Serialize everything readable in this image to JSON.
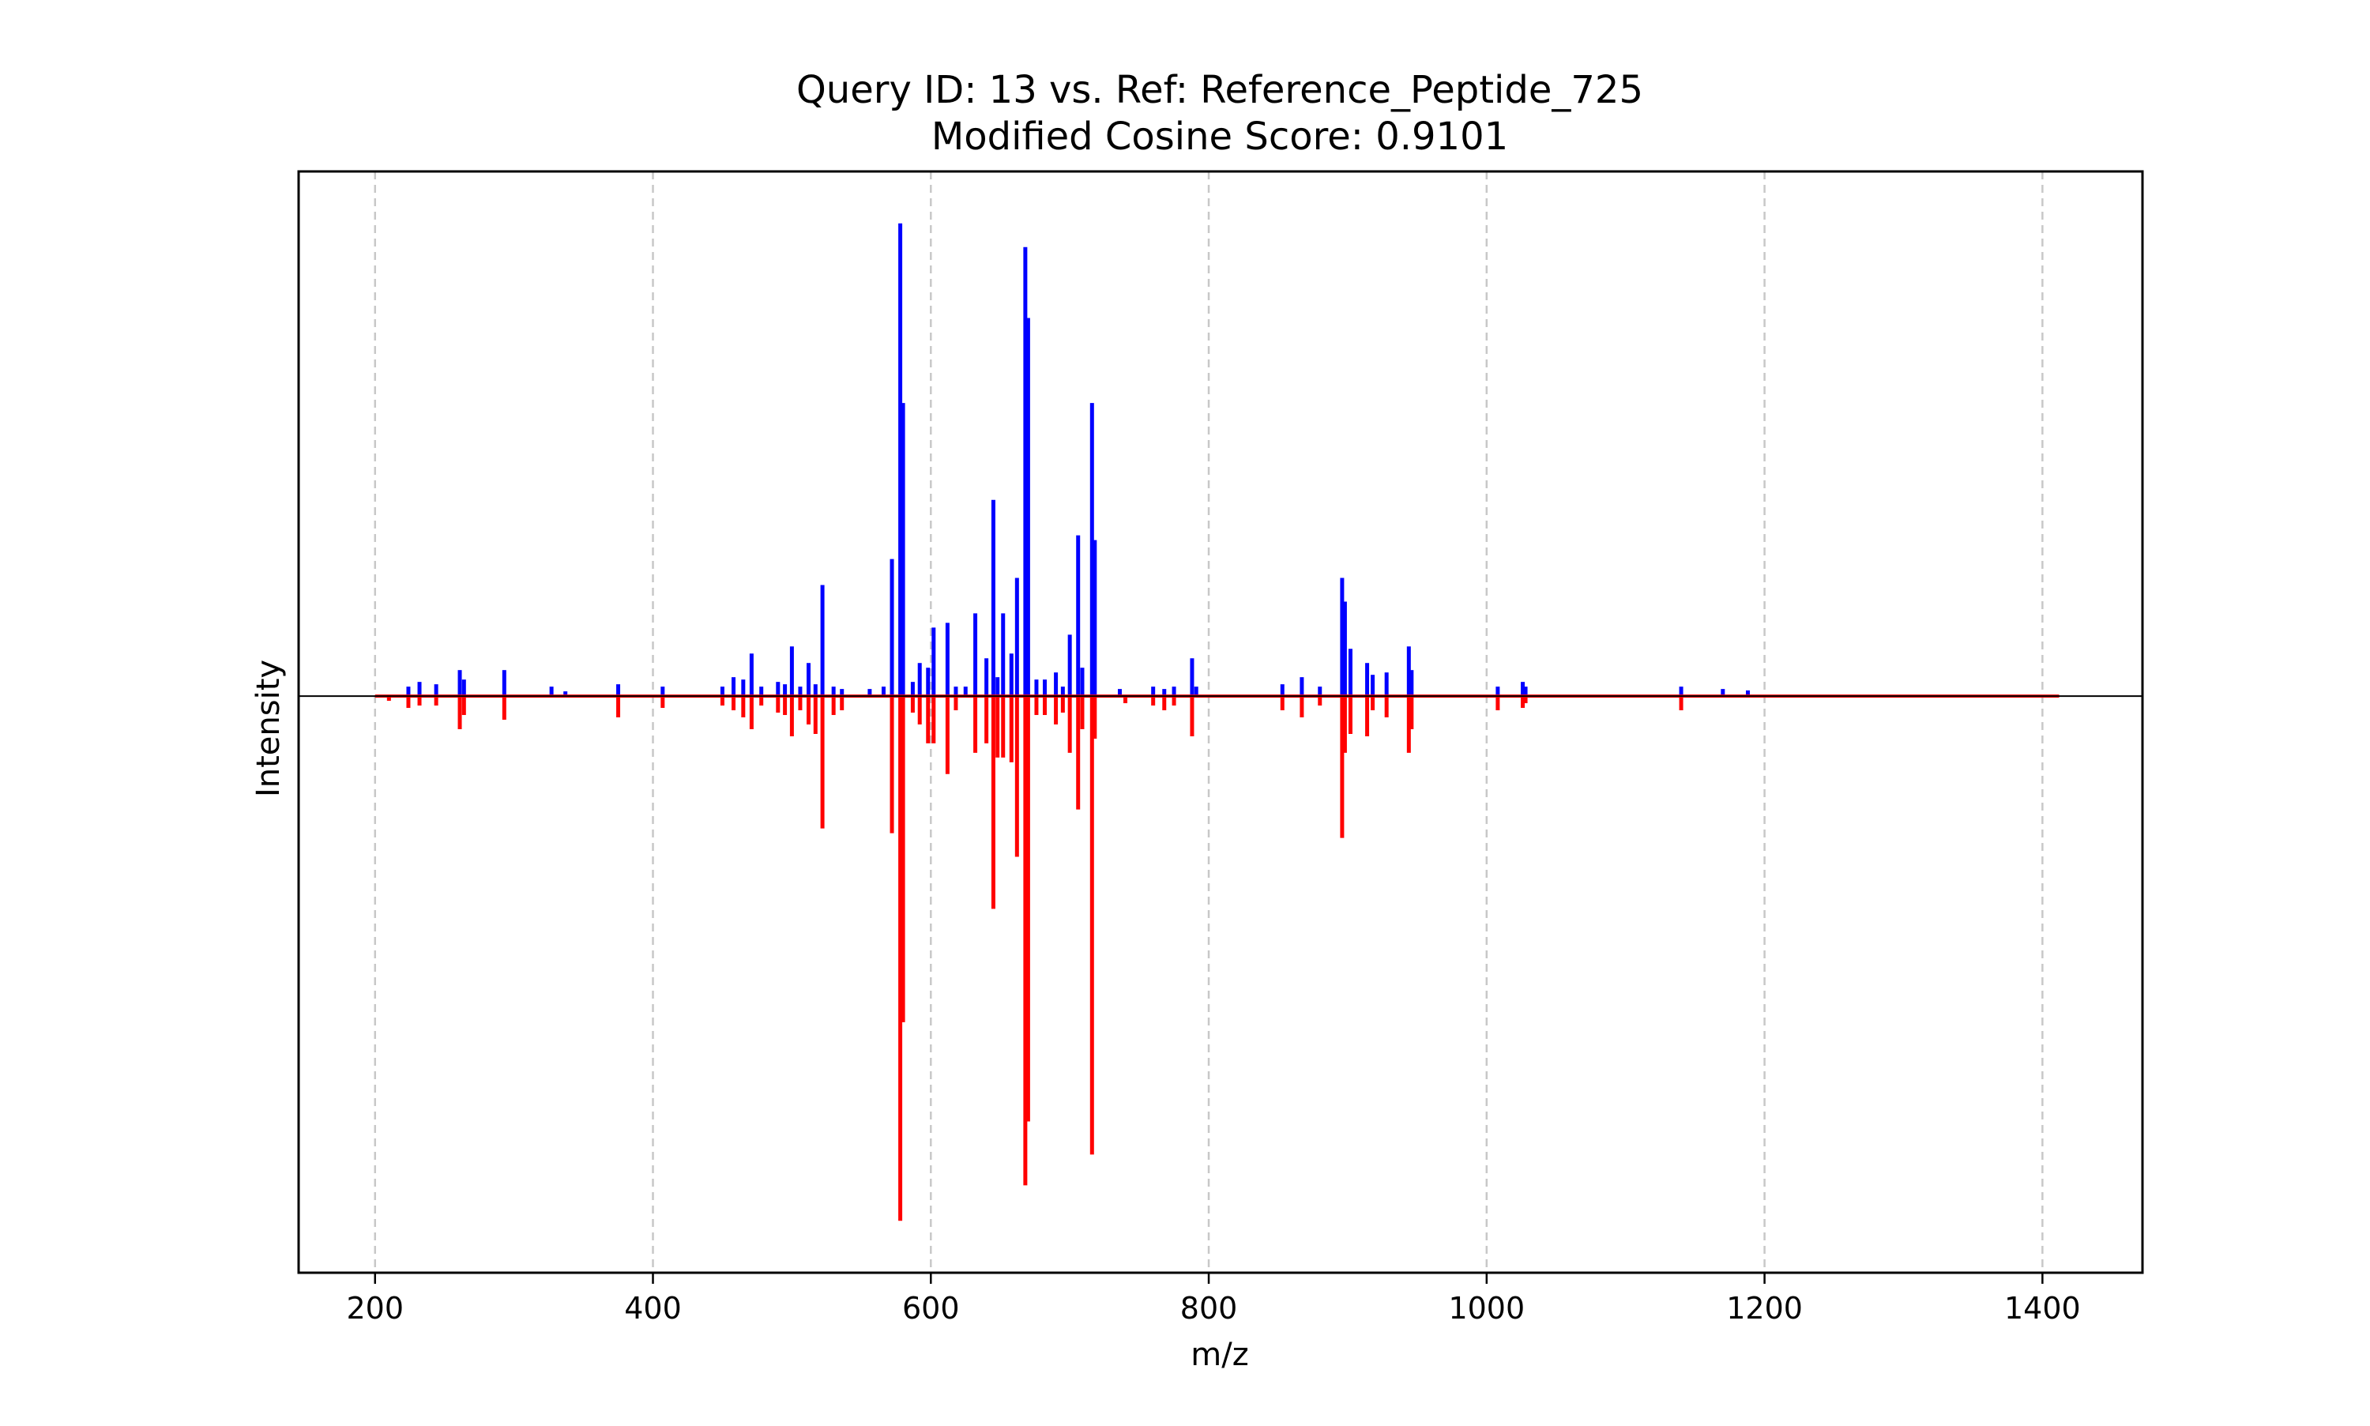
{
  "chart_data": {
    "type": "bar",
    "subtype": "mirror-spectrum",
    "title": "Query ID: 13 vs. Ref: Reference_Peptide_725",
    "subtitle": "Modified Cosine Score: 0.9101",
    "xlabel": "m/z",
    "ylabel": "Intensity",
    "xlim": [
      145,
      1472
    ],
    "ylim": [
      -1.22,
      1.11
    ],
    "xticks": [
      200,
      400,
      600,
      800,
      1000,
      1200,
      1400
    ],
    "grid": "vertical dashed",
    "colors": {
      "query": "#0000ff",
      "reference": "#ff0000",
      "baseline": "#000000",
      "grid": "#c8c8c8"
    },
    "series": [
      {
        "role": "query",
        "color": "#0000ff",
        "direction": "up",
        "x": [
          224,
          232,
          244,
          261,
          264,
          293,
          327,
          337,
          375,
          407,
          450,
          458,
          465,
          471,
          478,
          490,
          495,
          500,
          506,
          512,
          517,
          522,
          530,
          536,
          556,
          566,
          572,
          578,
          580,
          587,
          592,
          598,
          602,
          612,
          618,
          625,
          632,
          640,
          645,
          648,
          652,
          658,
          662,
          668,
          670,
          676,
          682,
          690,
          695,
          700,
          706,
          709,
          716,
          718,
          736,
          760,
          768,
          775,
          788,
          791,
          853,
          867,
          880,
          896,
          898,
          902,
          914,
          918,
          928,
          944,
          946,
          1008,
          1026,
          1028,
          1140,
          1170,
          1188
        ],
        "values": [
          0.02,
          0.03,
          0.025,
          0.055,
          0.035,
          0.055,
          0.02,
          0.01,
          0.025,
          0.02,
          0.02,
          0.04,
          0.035,
          0.09,
          0.02,
          0.03,
          0.025,
          0.105,
          0.02,
          0.07,
          0.025,
          0.235,
          0.02,
          0.015,
          0.015,
          0.02,
          0.29,
          1.0,
          0.62,
          0.03,
          0.07,
          0.06,
          0.145,
          0.155,
          0.02,
          0.02,
          0.175,
          0.08,
          0.415,
          0.04,
          0.175,
          0.09,
          0.25,
          0.95,
          0.8,
          0.035,
          0.035,
          0.05,
          0.02,
          0.13,
          0.34,
          0.06,
          0.62,
          0.33,
          0.015,
          0.02,
          0.015,
          0.02,
          0.08,
          0.02,
          0.025,
          0.04,
          0.02,
          0.25,
          0.2,
          0.1,
          0.07,
          0.045,
          0.05,
          0.105,
          0.055,
          0.02,
          0.03,
          0.02,
          0.02,
          0.015,
          0.012
        ]
      },
      {
        "role": "reference",
        "color": "#ff0000",
        "direction": "down",
        "x": [
          210,
          224,
          232,
          244,
          261,
          264,
          293,
          375,
          407,
          450,
          458,
          465,
          471,
          478,
          490,
          495,
          500,
          506,
          512,
          517,
          522,
          530,
          536,
          572,
          578,
          580,
          587,
          592,
          598,
          602,
          612,
          618,
          632,
          640,
          645,
          648,
          652,
          658,
          662,
          668,
          670,
          676,
          682,
          690,
          695,
          700,
          706,
          709,
          716,
          718,
          740,
          760,
          768,
          775,
          788,
          853,
          867,
          880,
          896,
          898,
          902,
          914,
          918,
          928,
          944,
          946,
          1008,
          1026,
          1028,
          1140
        ],
        "values": [
          0.01,
          0.025,
          0.02,
          0.02,
          0.07,
          0.04,
          0.05,
          0.045,
          0.025,
          0.02,
          0.03,
          0.045,
          0.07,
          0.02,
          0.035,
          0.04,
          0.085,
          0.03,
          0.06,
          0.08,
          0.28,
          0.04,
          0.03,
          0.29,
          1.11,
          0.69,
          0.035,
          0.06,
          0.1,
          0.1,
          0.165,
          0.03,
          0.12,
          0.1,
          0.45,
          0.13,
          0.13,
          0.14,
          0.34,
          1.035,
          0.9,
          0.04,
          0.04,
          0.06,
          0.035,
          0.12,
          0.24,
          0.07,
          0.97,
          0.09,
          0.015,
          0.02,
          0.03,
          0.02,
          0.085,
          0.03,
          0.045,
          0.02,
          0.3,
          0.12,
          0.08,
          0.085,
          0.03,
          0.045,
          0.12,
          0.07,
          0.03,
          0.025,
          0.015,
          0.03
        ]
      }
    ],
    "baseline_x_range": [
      200,
      1412
    ]
  }
}
